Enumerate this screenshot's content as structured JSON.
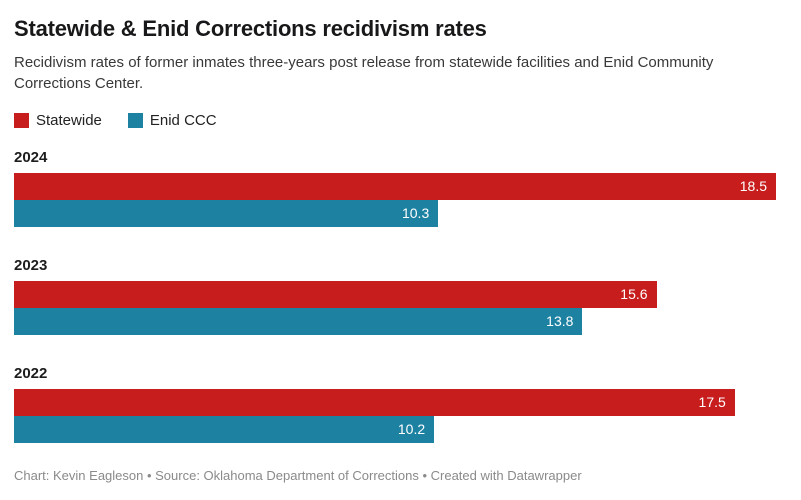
{
  "header": {
    "title": "Statewide & Enid Corrections recidivism rates",
    "subtitle": "Recidivism rates of former inmates three-years post release from statewide facilities and Enid Community Corrections Center."
  },
  "legend": {
    "items": [
      {
        "label": "Statewide",
        "color": "#c71e1d"
      },
      {
        "label": "Enid CCC",
        "color": "#1d81a2"
      }
    ]
  },
  "chart_data": {
    "type": "bar",
    "orientation": "horizontal",
    "title": "Statewide & Enid Corrections recidivism rates",
    "subtitle": "Recidivism rates of former inmates three-years post release from statewide facilities and Enid Community Corrections Center.",
    "categories": [
      "2024",
      "2023",
      "2022"
    ],
    "series": [
      {
        "name": "Statewide",
        "color": "#c71e1d",
        "values": [
          18.5,
          15.6,
          17.5
        ]
      },
      {
        "name": "Enid CCC",
        "color": "#1d81a2",
        "values": [
          10.3,
          13.8,
          10.2
        ]
      }
    ],
    "xlim": [
      0,
      18.5
    ],
    "value_labels": "inside-end",
    "grid": false,
    "legend_position": "top-left"
  },
  "footer": {
    "text": "Chart: Kevin Eagleson • Source: Oklahoma Department of Corrections • Created with Datawrapper"
  }
}
